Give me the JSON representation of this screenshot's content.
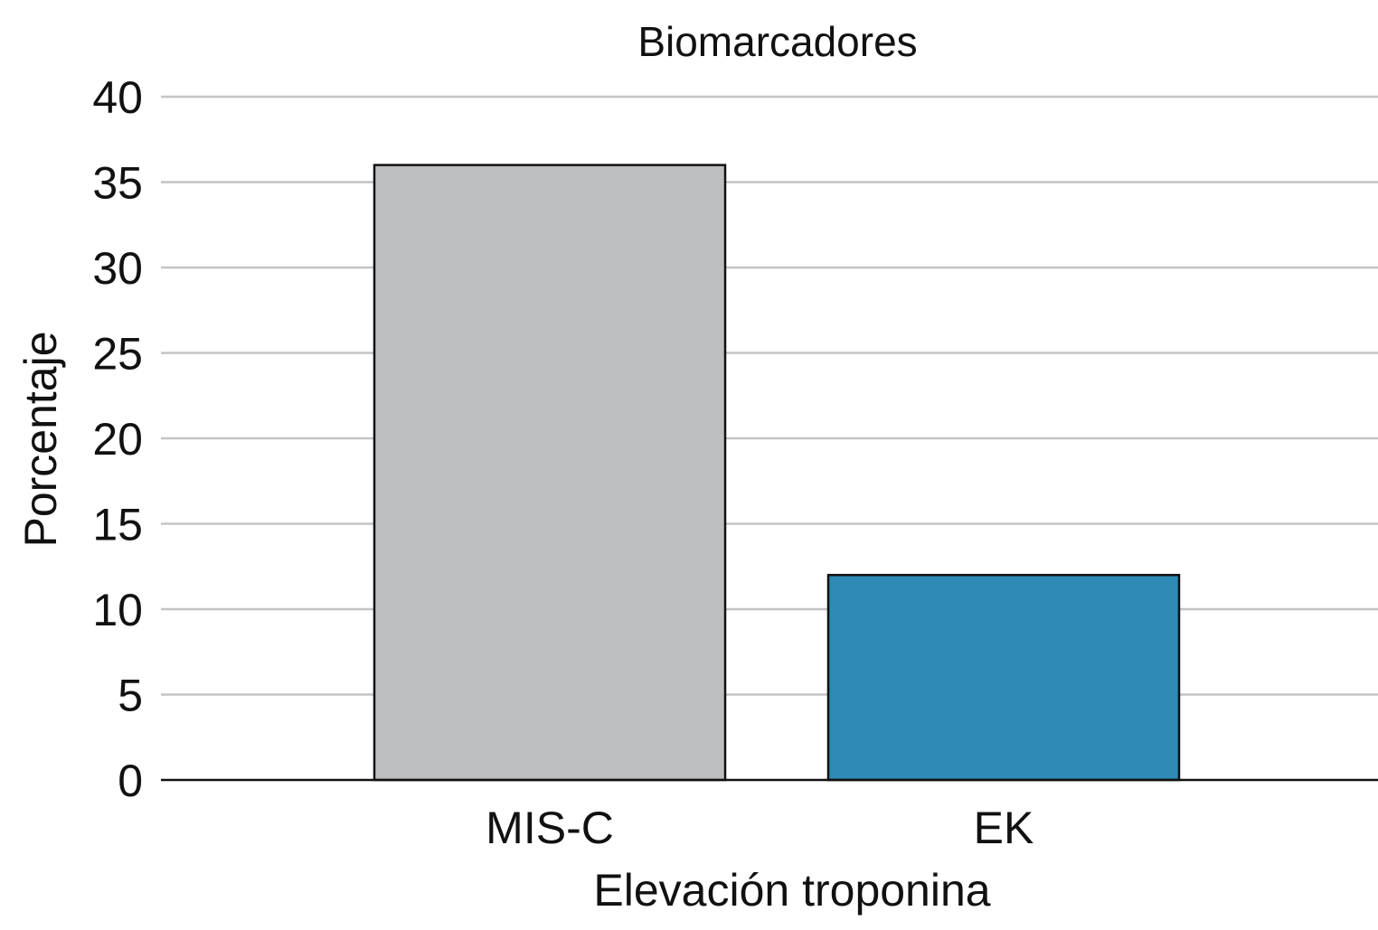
{
  "chart_data": {
    "type": "bar",
    "title": "Biomarcadores",
    "xlabel": "Elevación troponina",
    "ylabel": "Porcentaje",
    "categories": [
      "MIS-C",
      "EK"
    ],
    "values": [
      36,
      12
    ],
    "colors": [
      "#bdbec0",
      "#2e89b5"
    ],
    "ylim": [
      0,
      40
    ],
    "yticks": [
      0,
      5,
      10,
      15,
      20,
      25,
      30,
      35,
      40
    ],
    "grid": true,
    "legend": "none"
  }
}
